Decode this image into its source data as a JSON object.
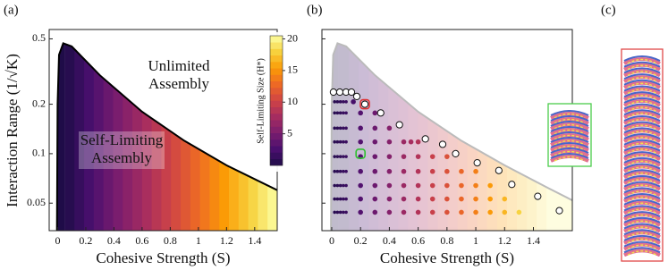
{
  "chart_data": [
    {
      "type": "contour",
      "label": "(a)",
      "xlabel": "Cohesive Strength (S)",
      "ylabel": "Interaction Range (1/√K)",
      "xlim": [
        -0.06,
        1.56
      ],
      "ylim": [
        0.034,
        0.57
      ],
      "yscale": "log",
      "xticks": [
        0,
        0.2,
        0.4,
        0.6,
        0.8,
        1,
        1.2,
        1.4
      ],
      "yticks": [
        0.05,
        0.1,
        0.2,
        0.5
      ],
      "boundary": {
        "x": [
          -0.005,
          0.0,
          0.01,
          0.04,
          0.1,
          0.3,
          0.6,
          0.9,
          1.2,
          1.56
        ],
        "y": [
          0.034,
          0.2,
          0.4,
          0.47,
          0.45,
          0.3,
          0.18,
          0.12,
          0.085,
          0.06
        ]
      },
      "annotations": [
        [
          "Unlimited",
          "Assembly"
        ],
        [
          "Self-Limiting",
          "Assembly"
        ]
      ],
      "colormap": [
        "#1f0c48",
        "#4a0f6e",
        "#7a1d6e",
        "#a52c60",
        "#cf4446",
        "#ed6925",
        "#fb9b06",
        "#f7d13d",
        "#fcffa4"
      ],
      "colorbar": {
        "label": "Self-Limiting Size (H*)",
        "lim": [
          0,
          20.5
        ],
        "ticks": [
          5,
          10,
          15,
          20
        ]
      }
    },
    {
      "type": "scatter",
      "label": "(b)",
      "xlabel": "Cohesive Strength (S)",
      "xlim": [
        -0.068,
        1.67
      ],
      "ylim": [
        0.034,
        0.57
      ],
      "yscale": "log",
      "xticks": [
        0,
        0.2,
        0.4,
        0.6,
        0.8,
        1,
        1.2,
        1.4
      ],
      "yticks": [
        0.05,
        0.1,
        0.2,
        0.5
      ],
      "boundary": {
        "x": [
          -0.005,
          0.0,
          0.01,
          0.04,
          0.1,
          0.3,
          0.6,
          0.9,
          1.2,
          1.5,
          1.67
        ],
        "y": [
          0.034,
          0.2,
          0.4,
          0.47,
          0.45,
          0.3,
          0.18,
          0.12,
          0.085,
          0.062,
          0.052
        ]
      },
      "rows": [
        {
          "y": 0.044,
          "x": [
            0.02,
            0.04,
            0.06,
            0.08,
            0.1,
            0.2,
            0.3,
            0.4,
            0.5,
            0.6,
            0.7,
            0.8,
            0.9,
            1.0,
            1.1,
            1.2,
            1.3
          ]
        },
        {
          "y": 0.053,
          "x": [
            0.02,
            0.04,
            0.06,
            0.08,
            0.1,
            0.2,
            0.3,
            0.4,
            0.5,
            0.6,
            0.7,
            0.8,
            0.9,
            1.0,
            1.1,
            1.2
          ]
        },
        {
          "y": 0.064,
          "x": [
            0.02,
            0.04,
            0.06,
            0.08,
            0.1,
            0.2,
            0.3,
            0.4,
            0.5,
            0.6,
            0.7,
            0.8,
            0.9,
            1.0,
            1.1
          ]
        },
        {
          "y": 0.078,
          "x": [
            0.02,
            0.04,
            0.06,
            0.08,
            0.1,
            0.2,
            0.3,
            0.4,
            0.5,
            0.6,
            0.7,
            0.8,
            0.9,
            1.0
          ]
        },
        {
          "y": 0.096,
          "x": [
            0.02,
            0.04,
            0.06,
            0.08,
            0.1,
            0.2,
            0.3,
            0.4,
            0.5,
            0.6,
            0.7,
            0.8
          ]
        },
        {
          "y": 0.118,
          "x": [
            0.02,
            0.04,
            0.06,
            0.08,
            0.1,
            0.2,
            0.3,
            0.4,
            0.5,
            0.55,
            0.6
          ]
        },
        {
          "y": 0.143,
          "x": [
            0.02,
            0.04,
            0.06,
            0.08,
            0.1,
            0.2,
            0.3,
            0.4
          ]
        },
        {
          "y": 0.177,
          "x": [
            0.02,
            0.04,
            0.06,
            0.08,
            0.1,
            0.2,
            0.3
          ]
        },
        {
          "y": 0.207,
          "x": [
            0.02,
            0.04,
            0.06,
            0.08,
            0.1,
            0.15
          ]
        }
      ],
      "open": {
        "x": [
          0.012,
          0.056,
          0.099,
          0.137,
          0.174,
          0.23,
          0.34,
          0.47,
          0.65,
          0.77,
          0.86,
          1.01,
          1.16,
          1.25,
          1.43,
          1.58
        ],
        "y": [
          0.237,
          0.237,
          0.237,
          0.237,
          0.223,
          0.2,
          0.177,
          0.15,
          0.123,
          0.114,
          0.1,
          0.088,
          0.079,
          0.065,
          0.055,
          0.045
        ]
      },
      "highlights": [
        {
          "x": 0.23,
          "y": 0.2,
          "color": "#e03030"
        },
        {
          "x": 0.2,
          "y": 0.1,
          "color": "#30c030"
        }
      ]
    }
  ],
  "panel_c": {
    "label": "(c)"
  }
}
